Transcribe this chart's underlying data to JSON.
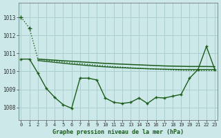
{
  "title": "Graphe pression niveau de la mer (hPa)",
  "yticks": [
    1008,
    1009,
    1010,
    1011,
    1012,
    1013
  ],
  "ylim": [
    1007.3,
    1013.8
  ],
  "xlim": [
    -0.3,
    23.3
  ],
  "background_color": "#cce8e8",
  "grid_color": "#aacfcf",
  "line_color": "#1a5c1a",
  "y_line1_dotted": [
    1013.0,
    1012.4,
    1010.68,
    1010.62,
    1010.57,
    1010.52,
    1010.47,
    1010.43,
    1010.38,
    1010.34,
    1010.3,
    1010.26,
    1010.23,
    1010.2,
    1010.17,
    1010.14,
    1010.12,
    1010.1,
    1010.08,
    1010.06,
    1010.05,
    1010.04,
    1010.04,
    1010.04
  ],
  "y_line2_upper": [
    1010.68,
    1010.68,
    1010.68,
    1010.65,
    1010.62,
    1010.59,
    1010.56,
    1010.53,
    1010.5,
    1010.47,
    1010.44,
    1010.42,
    1010.4,
    1010.38,
    1010.36,
    1010.34,
    1010.32,
    1010.3,
    1010.29,
    1010.28,
    1010.27,
    1010.27,
    1010.27,
    1010.26
  ],
  "y_line3_mid": [
    1010.65,
    1010.65,
    1010.6,
    1010.55,
    1010.5,
    1010.45,
    1010.4,
    1010.36,
    1010.32,
    1010.28,
    1010.25,
    1010.22,
    1010.2,
    1010.18,
    1010.16,
    1010.15,
    1010.13,
    1010.12,
    1010.11,
    1010.1,
    1010.1,
    1010.1,
    1010.1,
    1010.1
  ],
  "y_line4_wavy": [
    1010.68,
    1010.68,
    1009.9,
    1009.05,
    1008.55,
    1008.15,
    1007.95,
    1009.62,
    1009.62,
    1009.52,
    1008.52,
    1008.28,
    1008.22,
    1008.28,
    1008.52,
    1008.22,
    1008.55,
    1008.52,
    1008.62,
    1008.72,
    1009.62,
    1010.1,
    1011.38,
    1010.1
  ]
}
